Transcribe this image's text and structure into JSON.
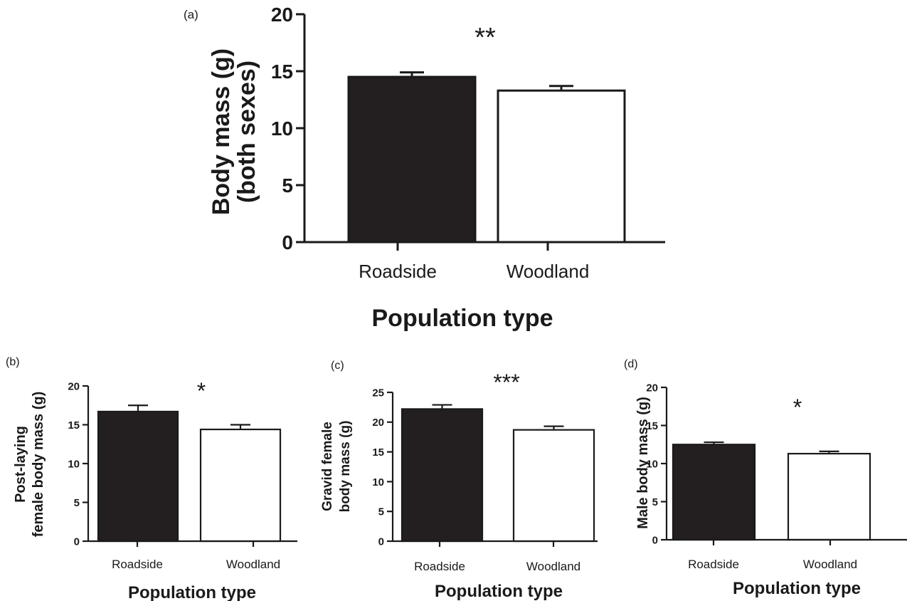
{
  "figure": {
    "shared_xlabel": "Population type"
  },
  "chart_data": [
    {
      "panel": "(a)",
      "type": "bar",
      "categories": [
        "Roadside",
        "Woodland"
      ],
      "values": [
        14.5,
        13.3
      ],
      "errors": [
        0.4,
        0.4
      ],
      "colors": [
        "#231f20",
        "#ffffff"
      ],
      "title": "",
      "xlabel": "",
      "ylabel": [
        "Body mass (g)",
        "(both sexes)"
      ],
      "ylim": [
        0,
        20
      ],
      "yticks": [
        "0",
        "5",
        "10",
        "15",
        "20"
      ],
      "significance": "**",
      "grid": false,
      "legend": "none"
    },
    {
      "panel": "(b)",
      "type": "bar",
      "categories": [
        "Roadside",
        "Woodland"
      ],
      "values": [
        16.7,
        14.4
      ],
      "errors": [
        0.8,
        0.6
      ],
      "colors": [
        "#231f20",
        "#ffffff"
      ],
      "title": "",
      "xlabel": "Population type",
      "ylabel": [
        "Post-laying",
        "female body mass (g)"
      ],
      "ylim": [
        0,
        20
      ],
      "yticks": [
        "0",
        "5",
        "10",
        "15",
        "20"
      ],
      "significance": "*",
      "grid": false,
      "legend": "none"
    },
    {
      "panel": "(c)",
      "type": "bar",
      "categories": [
        "Roadside",
        "Woodland"
      ],
      "values": [
        22.2,
        18.7
      ],
      "errors": [
        0.7,
        0.6
      ],
      "colors": [
        "#231f20",
        "#ffffff"
      ],
      "title": "",
      "xlabel": "Population type",
      "ylabel": [
        "Gravid female",
        "body mass (g)"
      ],
      "ylim": [
        0,
        25
      ],
      "yticks": [
        "0",
        "5",
        "10",
        "15",
        "20",
        "25"
      ],
      "significance": "***",
      "grid": false,
      "legend": "none"
    },
    {
      "panel": "(d)",
      "type": "bar",
      "categories": [
        "Roadside",
        "Woodland"
      ],
      "values": [
        12.5,
        11.3
      ],
      "errors": [
        0.3,
        0.3
      ],
      "colors": [
        "#231f20",
        "#ffffff"
      ],
      "title": "",
      "xlabel": "Population type",
      "ylabel": [
        "Male body mass (g)"
      ],
      "ylim": [
        0,
        20
      ],
      "yticks": [
        "0",
        "5",
        "10",
        "15",
        "20"
      ],
      "significance": "*",
      "grid": false,
      "legend": "none"
    }
  ]
}
